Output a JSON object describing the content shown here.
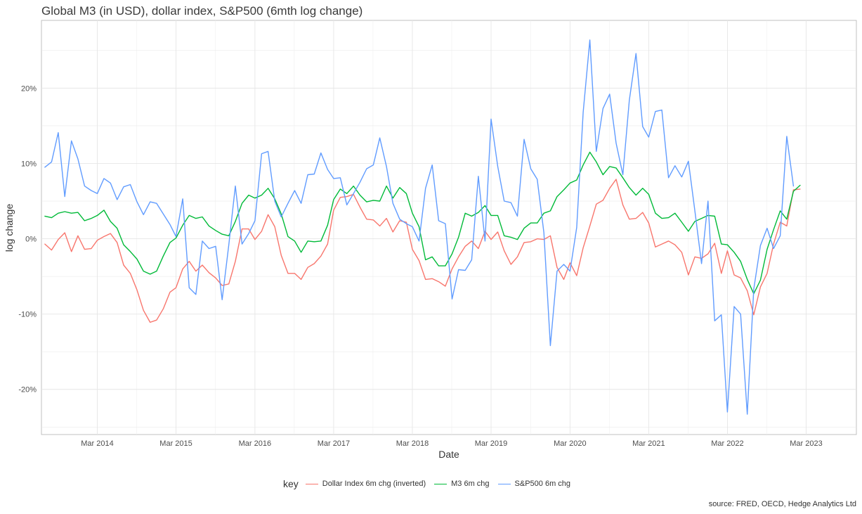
{
  "title": "Global M3 (in USD), dollar index, S&P500 (6mth log change)",
  "source": "source: FRED, OECD, Hedge Analytics Ltd",
  "chart_data": {
    "type": "line",
    "xlabel": "Date",
    "ylabel": "log change",
    "y_unit": "%",
    "ylim": [
      -26,
      29
    ],
    "yticks": [
      -20,
      -10,
      0,
      10,
      20
    ],
    "ytick_labels": [
      "-20%",
      "-10%",
      "0%",
      "10%",
      "20%"
    ],
    "xlim": [
      "2013-06-15",
      "2023-10-20"
    ],
    "xticks": [
      "2014-03-01",
      "2015-03-01",
      "2016-03-01",
      "2017-03-01",
      "2018-03-01",
      "2019-03-01",
      "2020-03-01",
      "2021-03-01",
      "2022-03-01",
      "2023-03-01"
    ],
    "xtick_labels": [
      "Mar 2014",
      "Mar 2015",
      "Mar 2016",
      "Mar 2017",
      "Mar 2018",
      "Mar 2019",
      "Mar 2020",
      "Mar 2021",
      "Mar 2022",
      "Mar 2023"
    ],
    "grid": true,
    "legend": {
      "title": "key",
      "position": "bottom"
    },
    "start_date": "2013-07-01",
    "frequency": "monthly",
    "series": [
      {
        "name": "Dollar Index 6m chg (inverted)",
        "color": "#F8766D",
        "values": [
          -0.7,
          -1.5,
          -0.1,
          0.8,
          -1.7,
          0.4,
          -1.4,
          -1.3,
          -0.2,
          0.3,
          0.7,
          -0.5,
          -3.5,
          -4.6,
          -6.8,
          -9.5,
          -11.1,
          -10.8,
          -9.3,
          -7.1,
          -6.5,
          -4.0,
          -3.0,
          -4.3,
          -3.5,
          -4.5,
          -5.2,
          -6.2,
          -6.0,
          -3.0,
          1.3,
          1.3,
          -0.1,
          1.0,
          3.2,
          1.6,
          -2.2,
          -4.6,
          -4.6,
          -5.4,
          -3.8,
          -3.3,
          -2.3,
          -0.7,
          3.8,
          5.5,
          5.6,
          5.9,
          4.2,
          2.6,
          2.5,
          1.7,
          2.7,
          0.9,
          2.4,
          2.2,
          -1.4,
          -2.9,
          -5.4,
          -5.3,
          -5.7,
          -6.3,
          -4.0,
          -2.4,
          -1.0,
          -0.3,
          -1.3,
          1.0,
          -0.1,
          0.9,
          -1.6,
          -3.4,
          -2.4,
          -0.5,
          -0.4,
          0.0,
          -0.1,
          0.4,
          -3.8,
          -5.4,
          -3.2,
          -4.9,
          -1.2,
          1.7,
          4.6,
          5.1,
          6.7,
          7.9,
          4.5,
          2.6,
          2.7,
          3.5,
          2.1,
          -1.1,
          -0.7,
          -0.3,
          -0.8,
          -1.8,
          -4.8,
          -2.4,
          -2.6,
          -2.0,
          -0.6,
          -4.6,
          -1.6,
          -4.8,
          -5.2,
          -6.9,
          -10.1,
          -6.4,
          -4.6,
          -0.7,
          2.2,
          1.7,
          6.5,
          6.6
        ]
      },
      {
        "name": "M3 6m chg",
        "color": "#00BA38",
        "values": [
          3.0,
          2.8,
          3.4,
          3.6,
          3.4,
          3.5,
          2.4,
          2.7,
          3.1,
          3.8,
          2.3,
          1.4,
          -0.8,
          -1.7,
          -2.7,
          -4.3,
          -4.7,
          -4.3,
          -2.3,
          -0.5,
          0.1,
          1.8,
          3.1,
          2.7,
          2.9,
          1.7,
          1.1,
          0.6,
          0.4,
          2.3,
          4.7,
          5.8,
          5.4,
          5.8,
          6.7,
          5.3,
          3.3,
          0.3,
          -0.3,
          -1.8,
          -0.3,
          -0.4,
          -0.3,
          1.8,
          5.2,
          6.6,
          6.0,
          7.0,
          5.8,
          4.9,
          5.1,
          5.0,
          7.0,
          5.4,
          6.8,
          6.0,
          3.4,
          1.6,
          -2.8,
          -2.4,
          -3.6,
          -3.6,
          -2.0,
          0.2,
          3.4,
          3.0,
          3.5,
          4.4,
          3.1,
          3.1,
          0.4,
          0.2,
          -0.1,
          1.4,
          2.1,
          2.1,
          3.4,
          3.7,
          5.6,
          6.5,
          7.4,
          7.8,
          9.8,
          11.5,
          10.2,
          8.5,
          9.6,
          9.4,
          8.1,
          6.8,
          5.8,
          6.7,
          5.9,
          3.4,
          2.7,
          2.8,
          3.4,
          2.2,
          1.0,
          2.3,
          2.7,
          3.1,
          3.0,
          -0.7,
          -0.8,
          -1.8,
          -3.0,
          -5.4,
          -7.3,
          -5.5,
          -1.4,
          1.2,
          3.7,
          2.6,
          6.3,
          7.1
        ]
      },
      {
        "name": "S&P500 6m chg",
        "color": "#619CFF",
        "values": [
          9.5,
          10.2,
          14.1,
          5.6,
          13.0,
          10.6,
          7.0,
          6.4,
          6.0,
          8.0,
          7.4,
          5.2,
          6.9,
          7.2,
          4.9,
          3.2,
          4.9,
          4.7,
          3.3,
          1.9,
          0.3,
          5.3,
          -6.5,
          -7.4,
          -0.3,
          -1.3,
          -1.0,
          -8.1,
          -0.8,
          7.0,
          -0.7,
          0.7,
          2.4,
          11.3,
          11.6,
          5.0,
          2.9,
          4.7,
          6.4,
          4.7,
          8.5,
          8.6,
          11.4,
          9.2,
          8.0,
          8.1,
          4.5,
          6.0,
          7.5,
          9.3,
          9.8,
          13.4,
          9.6,
          4.7,
          2.6,
          2.0,
          1.6,
          -0.3,
          6.7,
          9.8,
          2.4,
          2.0,
          -8.0,
          -4.1,
          -4.2,
          -2.8,
          8.3,
          -0.3,
          15.9,
          9.6,
          5.0,
          4.8,
          3.0,
          13.2,
          9.3,
          7.9,
          0.8,
          -14.2,
          -4.3,
          -3.4,
          -4.3,
          1.5,
          16.8,
          26.4,
          11.6,
          17.3,
          19.2,
          12.7,
          8.5,
          18.4,
          24.6,
          14.9,
          13.5,
          16.9,
          17.1,
          8.1,
          9.7,
          8.2,
          10.3,
          3.7,
          -3.3,
          5.0,
          -10.9,
          -10.1,
          -23.0,
          -9.0,
          -10.0,
          -23.3,
          -6.7,
          -0.9,
          1.4,
          -1.3,
          0.4,
          13.6,
          7.0
        ]
      }
    ]
  }
}
